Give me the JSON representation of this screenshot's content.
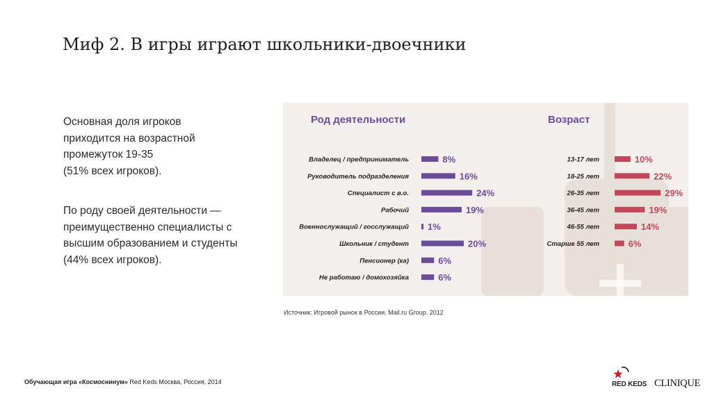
{
  "title": "Миф 2. В игры играют школьники-двоечники",
  "text": {
    "para1": "Основная доля игроков\nприходится на возрастной\nпромежуток 19-35\n(51% всех игроков).",
    "para2": "По роду своей деятельности —\nпреимущественно специалисты с\nвысшим образованием и студенты\n(44% всех игроков)."
  },
  "source": "Источник: Игровой рынок в России. Mail.ru Group. 2012",
  "footer": {
    "bold": "Обучающая игра «Космоснинум»",
    "rest": " Red Keds Москва, Россия, 2014"
  },
  "logos": {
    "red_keds": "RED KEDS",
    "clinique": "CLINIQUE"
  },
  "colors": {
    "occupation": "#6b4c9a",
    "age": "#c2475b",
    "panel_bg": "#f2efec",
    "heading": "#6b4c9a"
  },
  "chart_data": [
    {
      "type": "bar",
      "orientation": "horizontal",
      "title": "Род деятельности",
      "categories": [
        "Владелец / предприниматель",
        "Руководитель подразделения",
        "Специалист с в.о.",
        "Рабочий",
        "Военнослужащий / госслужащий",
        "Школьник / студент",
        "Пенсионер (ка)",
        "Не работаю / домохозяйка"
      ],
      "values": [
        8,
        16,
        24,
        19,
        1,
        20,
        6,
        6
      ],
      "labels": [
        "8%",
        "16%",
        "24%",
        "19%",
        "1%",
        "20%",
        "6%",
        "6%"
      ],
      "unit": "%"
    },
    {
      "type": "bar",
      "orientation": "horizontal",
      "title": "Возраст",
      "categories": [
        "13-17 лет",
        "18-25 лет",
        "26-35 лет",
        "36-45 лет",
        "46-55 лет",
        "Старше 55 лет"
      ],
      "values": [
        10,
        22,
        29,
        19,
        14,
        6
      ],
      "labels": [
        "10%",
        "22%",
        "29%",
        "19%",
        "14%",
        "6%"
      ],
      "unit": "%"
    }
  ]
}
